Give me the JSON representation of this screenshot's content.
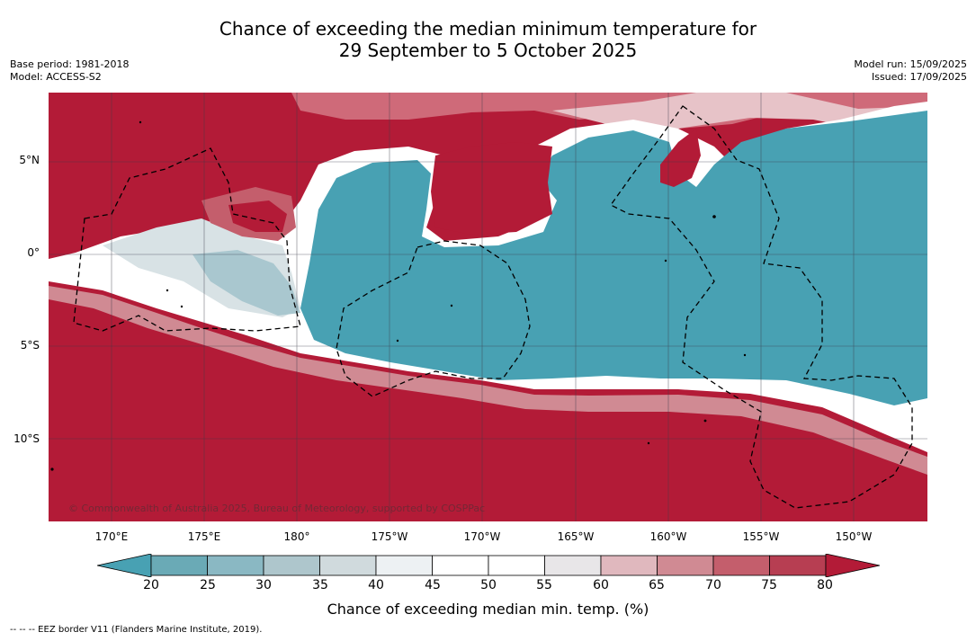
{
  "title": {
    "line1": "Chance of exceeding the median minimum temperature for",
    "line2": "29 September to 5 October 2025"
  },
  "meta_left": {
    "base_period": "Base period: 1981-2018",
    "model": "Model: ACCESS-S2"
  },
  "meta_right": {
    "model_run": "Model run: 15/09/2025",
    "issued": "Issued: 17/09/2025"
  },
  "map": {
    "background_color": "#b31b37",
    "neutral_color": "#ffffff",
    "low_color": "#48a1b3",
    "copyright": "© Commonwealth of Australia 2025, Bureau of Meteorology, supported by COSPPac",
    "lat_labels": [
      "5°N",
      "0°",
      "5°S",
      "10°S"
    ],
    "lon_labels": [
      "170°E",
      "175°E",
      "180°",
      "175°W",
      "170°W",
      "165°W",
      "160°W",
      "155°W",
      "150°W"
    ]
  },
  "colorbar": {
    "label": "Chance of exceeding median min. temp. (%)",
    "ticks": [
      "20",
      "25",
      "30",
      "35",
      "40",
      "45",
      "50",
      "55",
      "60",
      "65",
      "70",
      "75",
      "80"
    ],
    "colors": [
      "#48a1b3",
      "#6aaab6",
      "#8ab8c3",
      "#aec6cc",
      "#d0dadd",
      "#edf1f3",
      "#ffffff",
      "#ffffff",
      "#e8e6e8",
      "#e0b8be",
      "#d08a93",
      "#c45e6c",
      "#b73e52",
      "#b31b37"
    ]
  },
  "footnote": "--  --  -- EEZ border V11 (Flanders Marine Institute, 2019)."
}
